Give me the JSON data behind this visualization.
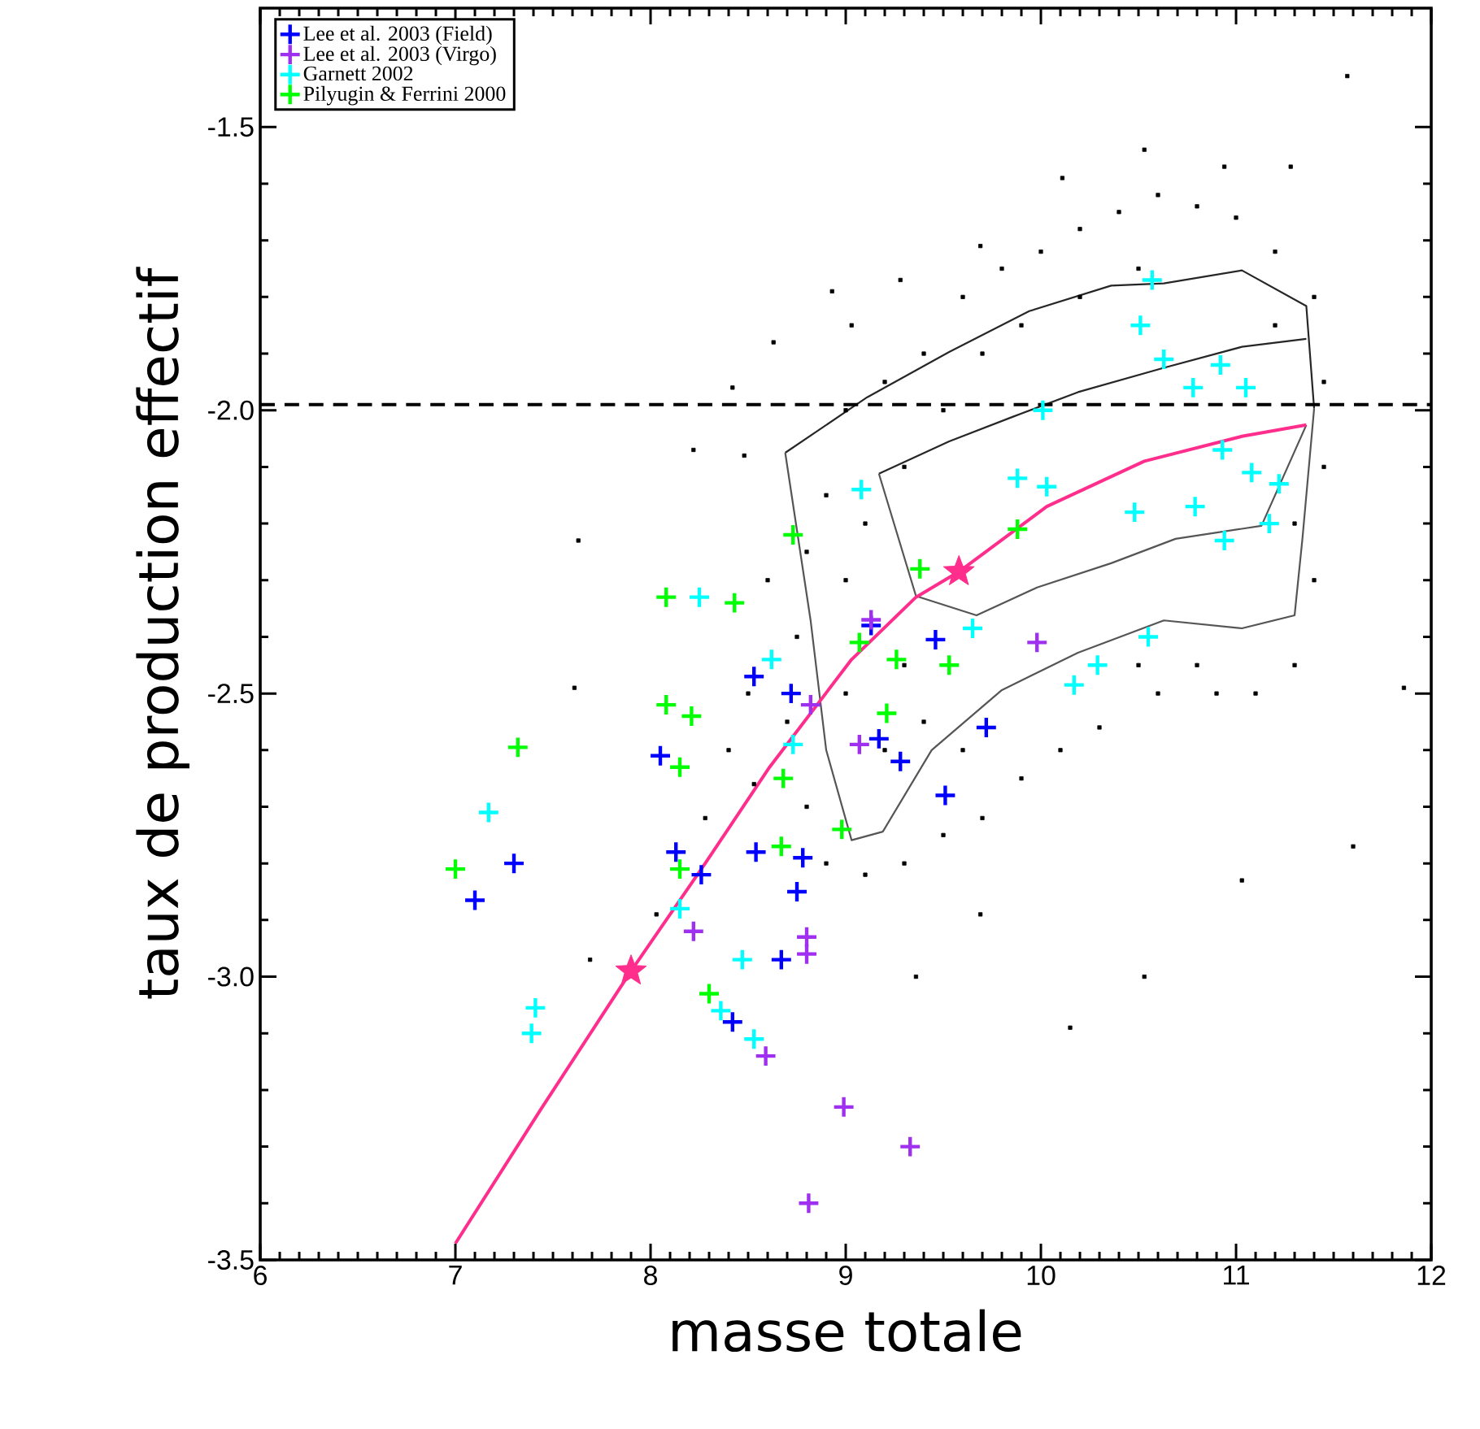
{
  "chart_data": {
    "type": "scatter",
    "xlabel": "masse totale",
    "ylabel": "taux de production effectif",
    "xlim": [
      6,
      12
    ],
    "ylim": [
      -3.5,
      -1.29
    ],
    "xticks": [
      6,
      7,
      8,
      9,
      10,
      11,
      12
    ],
    "yticks": [
      {
        "value": -3.5,
        "label": "-3.5"
      },
      {
        "value": -3.0,
        "label": "-3.0"
      },
      {
        "value": -2.5,
        "label": "-2.5"
      },
      {
        "value": -2.0,
        "label": "-2.0"
      },
      {
        "value": -1.5,
        "label": "-1.5"
      }
    ],
    "legend": "top left",
    "ref_lines": [
      {
        "axis": "y",
        "value": -1.99,
        "color": "#000000",
        "line_style": "dashed"
      }
    ],
    "series": [
      {
        "marker": "square",
        "color": "#000000",
        "x": [
          7.63,
          8.63,
          8.42,
          8.22,
          8.48,
          8.93,
          11.86,
          11.57,
          11.28,
          10.15,
          10.53,
          11.03,
          11.6,
          9.69,
          9.36,
          10.11,
          10.53,
          10.94,
          9.69,
          9.28,
          9.03,
          8.53,
          8.28,
          8.03,
          7.69,
          7.61,
          9.0,
          9.2,
          9.4,
          9.6,
          9.8,
          10.0,
          10.2,
          10.4,
          10.6,
          10.8,
          11.0,
          11.2,
          11.4,
          11.45,
          11.45,
          11.4,
          11.3,
          11.1,
          10.9,
          10.6,
          10.3,
          10.1,
          9.9,
          9.7,
          9.5,
          9.3,
          9.1,
          8.9,
          8.8,
          8.7,
          8.75,
          8.8,
          8.9,
          9.0,
          9.0,
          9.2,
          9.3,
          9.4,
          9.6,
          9.1,
          9.3,
          9.5,
          9.7,
          9.9,
          10.2,
          10.5,
          11.2,
          11.3,
          10.8,
          10.5,
          8.6,
          8.5,
          8.4
        ],
        "values": [
          -2.23,
          -1.88,
          -1.96,
          -2.07,
          -2.08,
          -1.79,
          -2.49,
          -1.41,
          -1.57,
          -3.09,
          -3.0,
          -2.83,
          -2.77,
          -2.89,
          -3.0,
          -1.59,
          -1.54,
          -1.57,
          -1.71,
          -1.77,
          -1.85,
          -2.66,
          -2.72,
          -2.89,
          -2.97,
          -2.49,
          -2.0,
          -1.95,
          -1.9,
          -1.8,
          -1.75,
          -1.72,
          -1.68,
          -1.65,
          -1.62,
          -1.64,
          -1.66,
          -1.72,
          -1.8,
          -1.95,
          -2.1,
          -2.3,
          -2.45,
          -2.5,
          -2.5,
          -2.5,
          -2.56,
          -2.6,
          -2.65,
          -2.72,
          -2.75,
          -2.8,
          -2.82,
          -2.8,
          -2.7,
          -2.55,
          -2.4,
          -2.25,
          -2.15,
          -2.3,
          -2.5,
          -2.6,
          -2.45,
          -2.55,
          -2.6,
          -2.2,
          -2.1,
          -2.0,
          -1.9,
          -1.85,
          -1.8,
          -1.75,
          -1.85,
          -2.2,
          -2.45,
          -2.45,
          -2.3,
          -2.5,
          -2.6
        ]
      },
      {
        "type": "line",
        "color": "#262626",
        "x": [
          8.69,
          9.11,
          9.53,
          9.94,
          10.36,
          10.63,
          11.03,
          11.36,
          11.4
        ],
        "values": [
          -2.075,
          -1.977,
          -1.897,
          -1.825,
          -1.78,
          -1.776,
          -1.753,
          -1.816,
          -1.997
        ]
      },
      {
        "type": "line",
        "color": "#555555",
        "x": [
          8.69,
          8.82,
          8.9,
          9.03,
          9.19,
          9.44,
          9.8,
          10.19,
          10.63,
          11.03,
          11.3,
          11.34,
          11.4
        ],
        "values": [
          -2.075,
          -2.371,
          -2.6,
          -2.759,
          -2.744,
          -2.6,
          -2.494,
          -2.428,
          -2.371,
          -2.385,
          -2.362,
          -2.227,
          -1.997
        ]
      },
      {
        "type": "line",
        "color": "#262626",
        "x": [
          9.17,
          9.53,
          9.86,
          10.19,
          10.63,
          11.03,
          11.36
        ],
        "values": [
          -2.112,
          -2.055,
          -2.011,
          -1.968,
          -1.925,
          -1.888,
          -1.874
        ]
      },
      {
        "type": "line",
        "color": "#555555",
        "x": [
          9.17,
          9.36,
          9.67,
          9.98,
          10.36,
          10.69,
          11.13,
          11.36
        ],
        "values": [
          -2.112,
          -2.328,
          -2.362,
          -2.313,
          -2.27,
          -2.227,
          -2.204,
          -2.026
        ]
      },
      {
        "name": "Lee et al. 2003 (Field)",
        "marker": "cross",
        "color": "#0000ff",
        "x": [
          7.1,
          7.3,
          8.05,
          8.13,
          8.26,
          8.42,
          8.53,
          8.54,
          8.67,
          8.72,
          8.75,
          8.78,
          9.13,
          9.17,
          9.28,
          9.46,
          9.51,
          9.72
        ],
        "values": [
          -2.865,
          -2.8,
          -2.61,
          -2.78,
          -2.82,
          -3.08,
          -2.47,
          -2.78,
          -2.97,
          -2.5,
          -2.85,
          -2.79,
          -2.38,
          -2.58,
          -2.62,
          -2.405,
          -2.68,
          -2.56
        ]
      },
      {
        "name": "Lee et al. 2003 (Virgo)",
        "marker": "cross",
        "color": "#a030f0",
        "x": [
          8.22,
          8.59,
          8.8,
          8.8,
          8.81,
          8.82,
          8.99,
          9.07,
          9.13,
          9.33,
          9.98
        ],
        "values": [
          -2.92,
          -3.14,
          -2.93,
          -2.96,
          -3.4,
          -2.52,
          -3.23,
          -2.59,
          -2.37,
          -3.3,
          -2.41
        ]
      },
      {
        "name": "Garnett 2002",
        "marker": "cross",
        "color": "#00ffff",
        "x": [
          7.17,
          7.41,
          7.39,
          8.25,
          8.62,
          8.73,
          8.15,
          8.47,
          8.36,
          8.53,
          9.08,
          9.65,
          10.01,
          9.88,
          10.03,
          10.48,
          10.79,
          10.93,
          11.08,
          11.22,
          11.17,
          10.94,
          10.57,
          10.51,
          10.63,
          10.78,
          10.92,
          11.05,
          10.55,
          10.29,
          10.17
        ],
        "values": [
          -2.71,
          -3.055,
          -3.1,
          -2.33,
          -2.44,
          -2.59,
          -2.88,
          -2.97,
          -3.06,
          -3.11,
          -2.14,
          -2.385,
          -2.0,
          -2.12,
          -2.135,
          -2.18,
          -2.17,
          -2.07,
          -2.11,
          -2.13,
          -2.2,
          -2.23,
          -1.77,
          -1.85,
          -1.91,
          -1.96,
          -1.92,
          -1.96,
          -2.4,
          -2.45,
          -2.485
        ]
      },
      {
        "name": "Pilyugin & Ferrini 2000",
        "marker": "cross",
        "color": "#00ff00",
        "x": [
          7.0,
          7.32,
          8.08,
          8.43,
          8.73,
          8.08,
          8.21,
          8.15,
          8.68,
          8.98,
          8.67,
          8.15,
          8.3,
          9.21,
          9.38,
          9.07,
          9.88,
          9.26,
          9.53
        ],
        "values": [
          -2.81,
          -2.595,
          -2.33,
          -2.34,
          -2.22,
          -2.52,
          -2.54,
          -2.63,
          -2.65,
          -2.74,
          -2.77,
          -2.81,
          -3.03,
          -2.535,
          -2.28,
          -2.41,
          -2.21,
          -2.44,
          -2.45
        ]
      },
      {
        "type": "line",
        "color": "#ff2d8c",
        "x": [
          7.0,
          7.44,
          7.9,
          8.28,
          8.61,
          9.03,
          9.36,
          9.58,
          10.03,
          10.53,
          11.03,
          11.36
        ],
        "values": [
          -3.471,
          -3.233,
          -2.99,
          -2.8,
          -2.63,
          -2.44,
          -2.33,
          -2.285,
          -2.17,
          -2.09,
          -2.046,
          -2.026
        ]
      },
      {
        "marker": "star",
        "color": "#ff2d8c",
        "x": [
          7.9,
          9.58
        ],
        "values": [
          -2.99,
          -2.285
        ]
      }
    ]
  }
}
